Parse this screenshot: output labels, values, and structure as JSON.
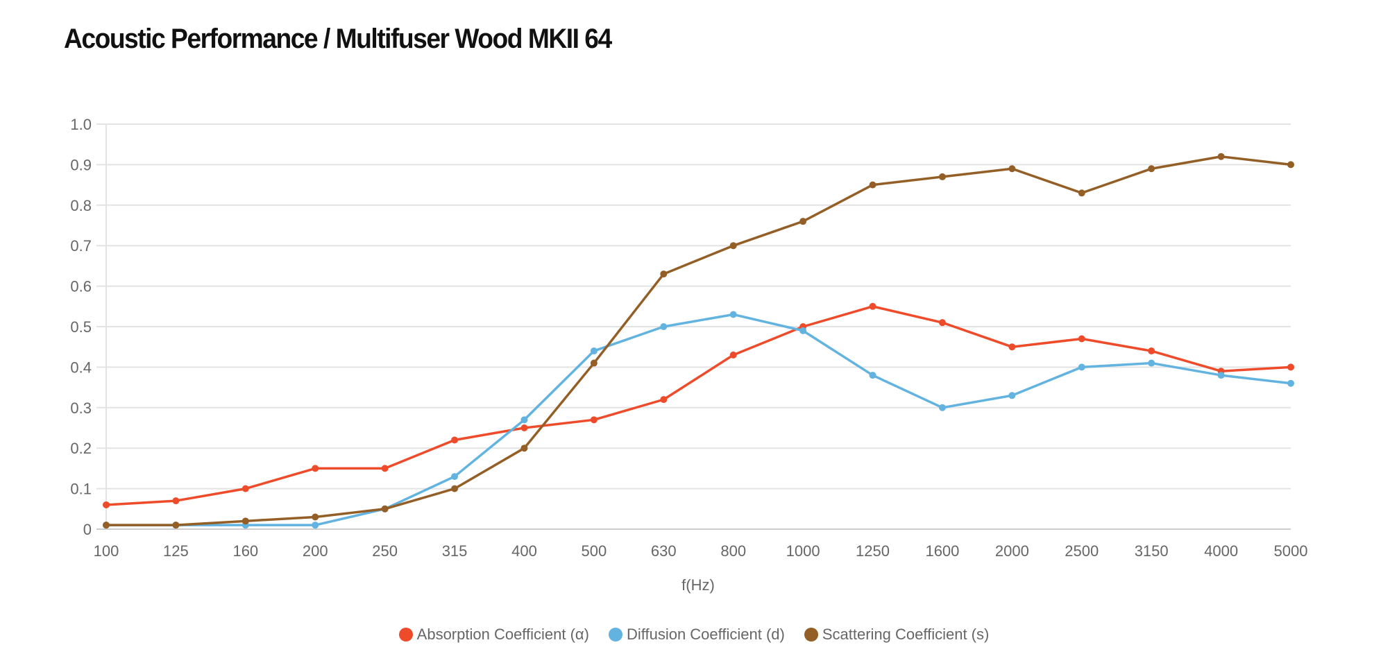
{
  "chart_data": {
    "type": "line",
    "title": "Acoustic Performance / Multifuser Wood MKII 64",
    "xlabel": "f(Hz)",
    "ylabel": "",
    "categories": [
      "100",
      "125",
      "160",
      "200",
      "250",
      "315",
      "400",
      "500",
      "630",
      "800",
      "1000",
      "1250",
      "1600",
      "2000",
      "2500",
      "3150",
      "4000",
      "5000"
    ],
    "yticks": [
      "0",
      "0.1",
      "0.2",
      "0.3",
      "0.4",
      "0.5",
      "0.6",
      "0.7",
      "0.8",
      "0.9",
      "1.0"
    ],
    "ylim": [
      0,
      1.0
    ],
    "grid": true,
    "legend_position": "bottom-center",
    "series": [
      {
        "name": "Absorption Coefficient (α)",
        "color": "#EE4B2B",
        "values": [
          0.06,
          0.07,
          0.1,
          0.15,
          0.15,
          0.22,
          0.25,
          0.27,
          0.32,
          0.43,
          0.5,
          0.55,
          0.51,
          0.45,
          0.47,
          0.44,
          0.39,
          0.4
        ]
      },
      {
        "name": "Diffusion Coefficient (d)",
        "color": "#62B3E0",
        "values": [
          0.01,
          0.01,
          0.01,
          0.01,
          0.05,
          0.13,
          0.27,
          0.44,
          0.5,
          0.53,
          0.49,
          0.38,
          0.3,
          0.33,
          0.4,
          0.41,
          0.38,
          0.36
        ]
      },
      {
        "name": "Scattering Coefficient (s)",
        "color": "#945F26",
        "values": [
          0.01,
          0.01,
          0.02,
          0.03,
          0.05,
          0.1,
          0.2,
          0.41,
          0.63,
          0.7,
          0.76,
          0.85,
          0.87,
          0.89,
          0.83,
          0.89,
          0.92,
          0.9
        ]
      }
    ]
  }
}
